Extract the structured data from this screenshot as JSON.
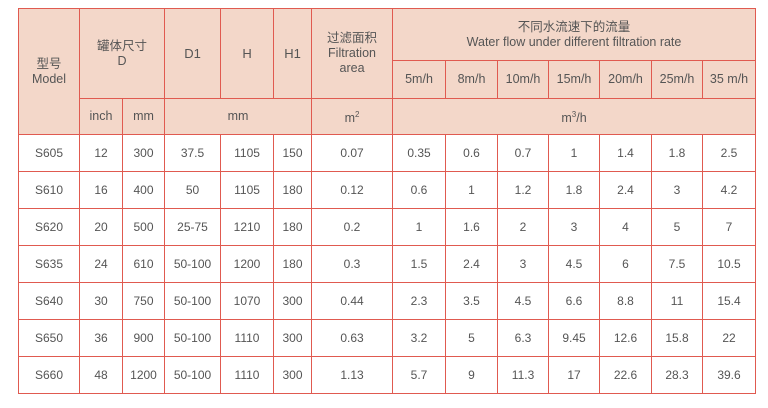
{
  "header": {
    "model_cn": "型号",
    "model_en": "Model",
    "tank_cn": "罐体尺寸",
    "tank_en": "D",
    "d1": "D1",
    "h": "H",
    "h1": "H1",
    "area_cn": "过滤面积",
    "area_en1": "Filtration",
    "area_en2": "area",
    "flow_cn": "不同水流速下的流量",
    "flow_en": "Water flow under different filtration rate",
    "rates": [
      "5m/h",
      "8m/h",
      "10m/h",
      "15m/h",
      "20m/h",
      "25m/h",
      "35 m/h"
    ],
    "unit_inch": "inch",
    "unit_mm": "mm",
    "unit_dims": "mm",
    "unit_area": "m",
    "unit_area_sup": "2",
    "unit_flow": "m",
    "unit_flow_sup": "3",
    "unit_flow_tail": "/h"
  },
  "rows": [
    [
      "S605",
      "12",
      "300",
      "37.5",
      "1105",
      "150",
      "0.07",
      "0.35",
      "0.6",
      "0.7",
      "1",
      "1.4",
      "1.8",
      "2.5"
    ],
    [
      "S610",
      "16",
      "400",
      "50",
      "1105",
      "180",
      "0.12",
      "0.6",
      "1",
      "1.2",
      "1.8",
      "2.4",
      "3",
      "4.2"
    ],
    [
      "S620",
      "20",
      "500",
      "25-75",
      "1210",
      "180",
      "0.2",
      "1",
      "1.6",
      "2",
      "3",
      "4",
      "5",
      "7"
    ],
    [
      "S635",
      "24",
      "610",
      "50-100",
      "1200",
      "180",
      "0.3",
      "1.5",
      "2.4",
      "3",
      "4.5",
      "6",
      "7.5",
      "10.5"
    ],
    [
      "S640",
      "30",
      "750",
      "50-100",
      "1070",
      "300",
      "0.44",
      "2.3",
      "3.5",
      "4.5",
      "6.6",
      "8.8",
      "11",
      "15.4"
    ],
    [
      "S650",
      "36",
      "900",
      "50-100",
      "1110",
      "300",
      "0.63",
      "3.2",
      "5",
      "6.3",
      "9.45",
      "12.6",
      "15.8",
      "22"
    ],
    [
      "S660",
      "48",
      "1200",
      "50-100",
      "1110",
      "300",
      "1.13",
      "5.7",
      "9",
      "11.3",
      "17",
      "22.6",
      "28.3",
      "39.6"
    ]
  ]
}
